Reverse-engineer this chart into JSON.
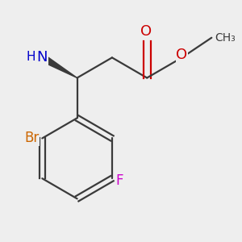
{
  "background_color": "#eeeeee",
  "colors": {
    "N": "#0000cc",
    "O": "#cc0000",
    "Br": "#cc6600",
    "F": "#cc00cc",
    "C": "#3a3a3a",
    "bond": "#3a3a3a"
  },
  "scale": 0.85,
  "shift": [
    0.05,
    0.25
  ]
}
